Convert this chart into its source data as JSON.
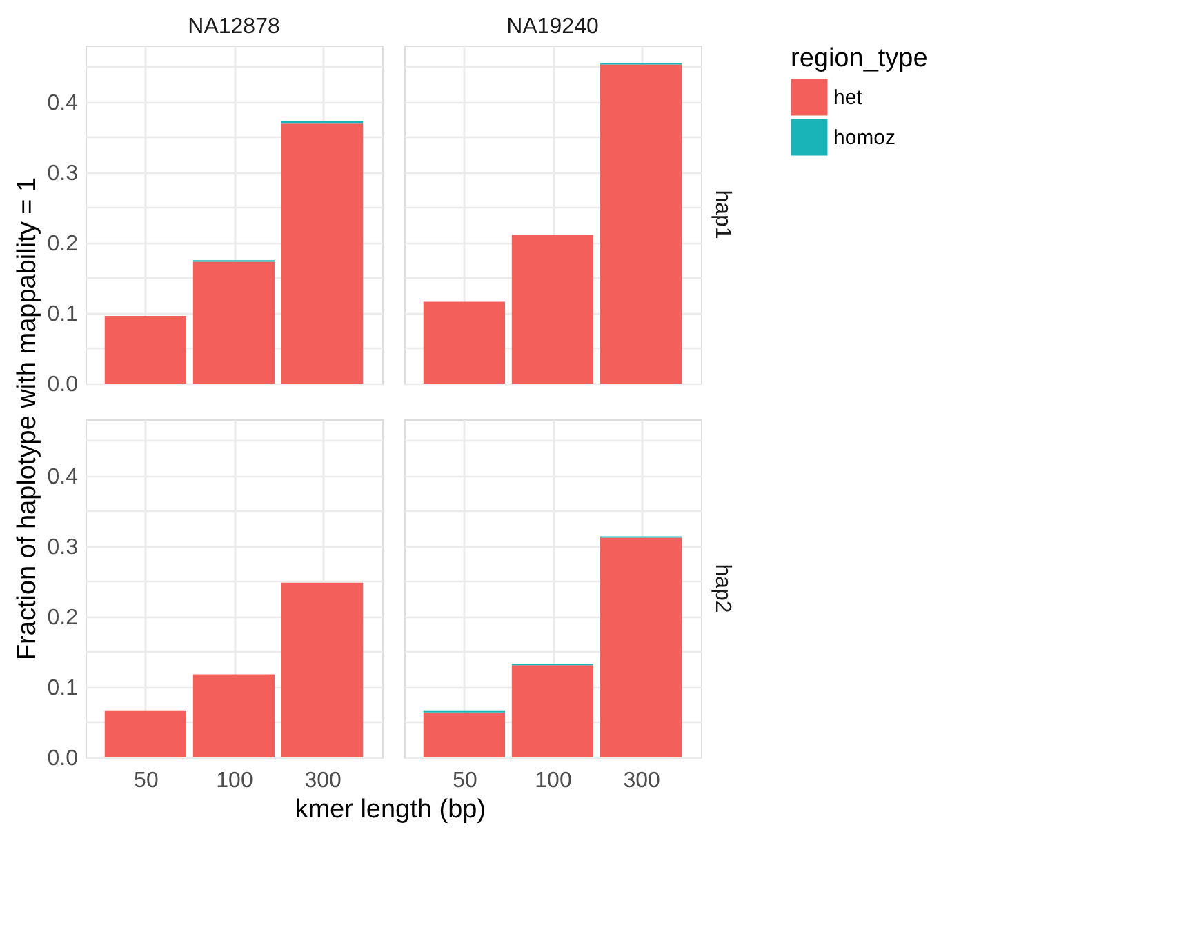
{
  "chart_data": [
    {
      "type": "bar",
      "stacked": true,
      "title": "NA12878",
      "ylabel": "Fraction of haplotype with mappability = 1",
      "categories": [
        "50",
        "100",
        "300"
      ],
      "series": [
        {
          "name": "het",
          "color": "#f3605c",
          "values": [
            0.096,
            0.173,
            0.369
          ]
        },
        {
          "name": "homoz",
          "color": "#18b4b8",
          "values": [
            0,
            0.002,
            0.004
          ]
        }
      ],
      "ylim": [
        0,
        0.48
      ],
      "yticks": [
        {
          "value": 0,
          "label": "0.0"
        },
        {
          "value": 0.05,
          "label": null
        },
        0.1,
        {
          "value": 0.15,
          "label": null
        },
        0.2,
        {
          "value": 0.25,
          "label": null
        },
        0.3,
        {
          "value": 0.35,
          "label": null
        },
        0.4,
        {
          "value": 0.45,
          "label": null
        }
      ],
      "grid": true,
      "tick_labels": "y",
      "legend_title": "region_type",
      "legend": "right"
    },
    {
      "type": "bar",
      "stacked": true,
      "title": "NA19240",
      "y2label": "hap1",
      "categories": [
        "50",
        "100",
        "300"
      ],
      "series": [
        {
          "name": "het",
          "color": "#f3605c",
          "values": [
            0.116,
            0.211,
            0.453
          ]
        },
        {
          "name": "homoz",
          "color": "#18b4b8",
          "values": [
            0,
            0,
            0.002
          ]
        }
      ],
      "ylim": [
        0,
        0.48
      ],
      "yticks": [
        0,
        {
          "value": 0.05,
          "label": null
        },
        0.1,
        {
          "value": 0.15,
          "label": null
        },
        0.2,
        {
          "value": 0.25,
          "label": null
        },
        0.3,
        {
          "value": 0.35,
          "label": null
        },
        0.4,
        {
          "value": 0.45,
          "label": null
        }
      ],
      "grid": true,
      "tick_labels": false
    },
    {
      "type": "bar",
      "stacked": true,
      "xlabel": "kmer length (bp)",
      "categories": [
        "50",
        "100",
        "300"
      ],
      "series": [
        {
          "name": "het",
          "color": "#f3605c",
          "values": [
            0.066,
            0.118,
            0.248
          ]
        },
        {
          "name": "homoz",
          "color": "#18b4b8",
          "values": [
            0,
            0,
            0
          ]
        }
      ],
      "ylim": [
        0,
        0.48
      ],
      "yticks": [
        {
          "value": 0,
          "label": "0.0"
        },
        {
          "value": 0.05,
          "label": null
        },
        0.1,
        {
          "value": 0.15,
          "label": null
        },
        0.2,
        {
          "value": 0.25,
          "label": null
        },
        0.3,
        {
          "value": 0.35,
          "label": null
        },
        0.4,
        {
          "value": 0.45,
          "label": null
        }
      ],
      "grid": true
    },
    {
      "type": "bar",
      "stacked": true,
      "y2label": "hap2",
      "categories": [
        "50",
        "100",
        "300"
      ],
      "series": [
        {
          "name": "het",
          "color": "#f3605c",
          "values": [
            0.064,
            0.131,
            0.312
          ]
        },
        {
          "name": "homoz",
          "color": "#18b4b8",
          "values": [
            0.002,
            0.002,
            0.002
          ]
        }
      ],
      "ylim": [
        0,
        0.48
      ],
      "yticks": [
        0,
        {
          "value": 0.05,
          "label": null
        },
        0.1,
        {
          "value": 0.15,
          "label": null
        },
        0.2,
        {
          "value": 0.25,
          "label": null
        },
        0.3,
        {
          "value": 0.35,
          "label": null
        },
        0.4,
        {
          "value": 0.45,
          "label": null
        }
      ],
      "grid": true,
      "tick_labels": "x"
    }
  ]
}
